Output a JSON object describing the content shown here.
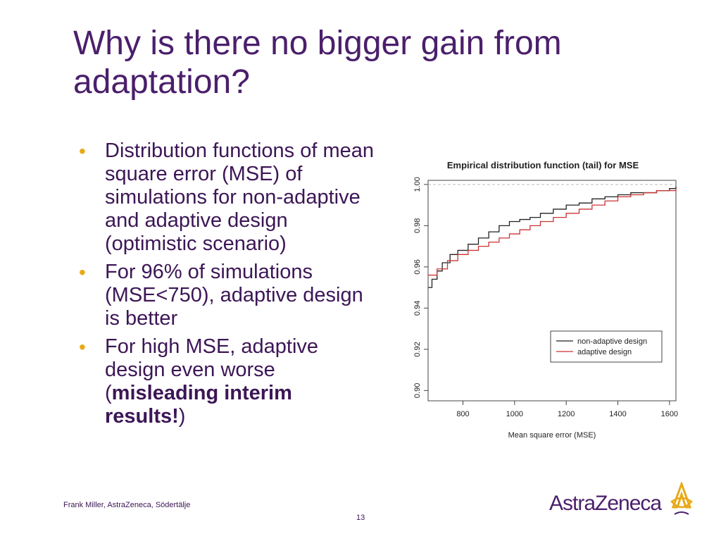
{
  "slide": {
    "title": "Why is there no bigger gain from adaptation?",
    "bullets": [
      {
        "parts": [
          {
            "text": "Distribution functions of mean square error (MSE) of simulations for non-adaptive and adaptive design (optimistic scenario)",
            "bold": false
          }
        ]
      },
      {
        "parts": [
          {
            "text": "For 96% of simulations (MSE<750), adaptive design is better",
            "bold": false
          }
        ]
      },
      {
        "parts": [
          {
            "text": "For high MSE, adaptive design even worse (",
            "bold": false
          },
          {
            "text": "misleading interim results!",
            "bold": true
          },
          {
            "text": ")",
            "bold": false
          }
        ]
      }
    ],
    "footer": "Frank Miller, AstraZeneca, Södertälje",
    "page_number": "13",
    "logo_text": "AstraZeneca",
    "colors": {
      "title": "#4b1f6b",
      "bullet": "#e8a916",
      "text": "#3c1656"
    }
  },
  "chart_data": {
    "type": "line",
    "title": "Empirical distribution function (tail) for MSE",
    "xlabel": "Mean square error (MSE)",
    "ylabel": "",
    "xlim": [
      665,
      1625
    ],
    "ylim": [
      0.895,
      1.002
    ],
    "xticks": [
      800,
      1000,
      1200,
      1400,
      1600
    ],
    "yticks": [
      "0.90",
      "0.92",
      "0.94",
      "0.96",
      "0.98",
      "1.00"
    ],
    "reference_line_y": 1.0,
    "legend_position": "bottom-right",
    "series": [
      {
        "name": "non-adaptive design",
        "color": "#222222",
        "x": [
          665,
          680,
          700,
          720,
          750,
          780,
          820,
          860,
          900,
          940,
          980,
          1020,
          1060,
          1100,
          1150,
          1200,
          1250,
          1300,
          1350,
          1400,
          1450,
          1500,
          1550,
          1600,
          1625
        ],
        "y": [
          0.95,
          0.954,
          0.958,
          0.962,
          0.966,
          0.968,
          0.971,
          0.974,
          0.977,
          0.98,
          0.982,
          0.983,
          0.984,
          0.986,
          0.988,
          0.99,
          0.991,
          0.993,
          0.994,
          0.995,
          0.996,
          0.996,
          0.997,
          0.998,
          0.999
        ]
      },
      {
        "name": "adaptive design",
        "color": "#cc3333",
        "x": [
          665,
          700,
          740,
          780,
          820,
          860,
          900,
          940,
          980,
          1020,
          1060,
          1100,
          1150,
          1200,
          1250,
          1300,
          1350,
          1400,
          1450,
          1500,
          1550,
          1600,
          1625
        ],
        "y": [
          0.956,
          0.959,
          0.963,
          0.966,
          0.968,
          0.97,
          0.972,
          0.974,
          0.976,
          0.978,
          0.98,
          0.982,
          0.984,
          0.986,
          0.988,
          0.99,
          0.992,
          0.994,
          0.995,
          0.996,
          0.997,
          0.997,
          0.998
        ]
      }
    ]
  }
}
